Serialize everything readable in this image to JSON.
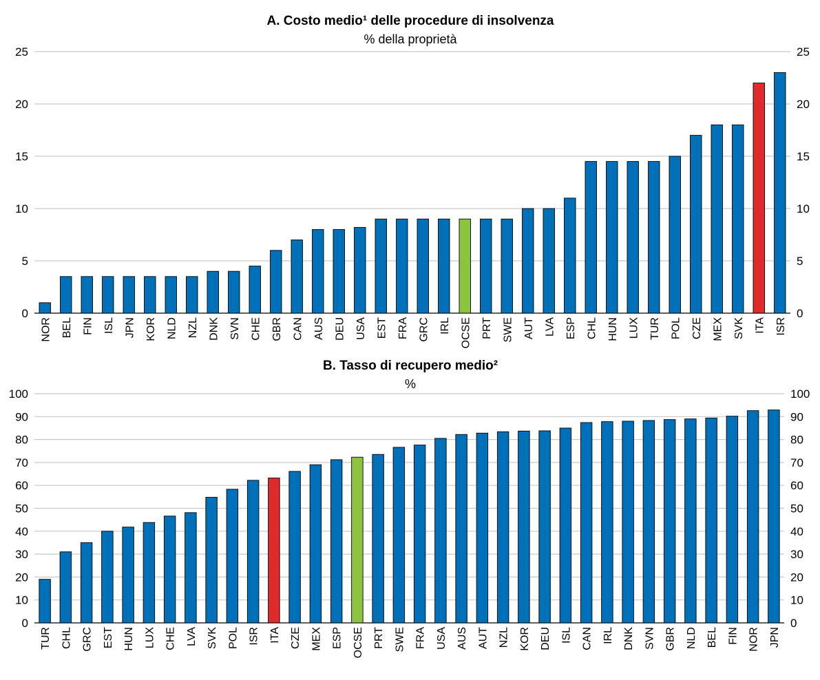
{
  "chart_data": [
    {
      "type": "bar",
      "title": "A. Costo medio¹ delle procedure di insolvenza",
      "subtitle": "% della proprietà",
      "xlabel": "",
      "ylabel": "",
      "ylim": [
        0,
        25
      ],
      "yticks": [
        0,
        5,
        10,
        15,
        20,
        25
      ],
      "grid": true,
      "categories": [
        "NOR",
        "BEL",
        "FIN",
        "ISL",
        "JPN",
        "KOR",
        "NLD",
        "NZL",
        "DNK",
        "SVN",
        "CHE",
        "GBR",
        "CAN",
        "AUS",
        "DEU",
        "USA",
        "EST",
        "FRA",
        "GRC",
        "IRL",
        "OCSE",
        "PRT",
        "SWE",
        "AUT",
        "LVA",
        "ESP",
        "CHL",
        "HUN",
        "LUX",
        "TUR",
        "POL",
        "CZE",
        "MEX",
        "SVK",
        "ITA",
        "ISR"
      ],
      "values": [
        1,
        3.5,
        3.5,
        3.5,
        3.5,
        3.5,
        3.5,
        3.5,
        4,
        4,
        4.5,
        6,
        7,
        8,
        8,
        8.2,
        9,
        9,
        9,
        9,
        9,
        9,
        9,
        10,
        10,
        11,
        14.5,
        14.5,
        14.5,
        14.5,
        15,
        17,
        18,
        18,
        22,
        23
      ],
      "colors": {
        "default": "#0070b8",
        "ITA": "#de2b2b",
        "OCSE": "#8cc43f"
      }
    },
    {
      "type": "bar",
      "title": "B.  Tasso di recupero medio²",
      "subtitle": "%",
      "xlabel": "",
      "ylabel": "",
      "ylim": [
        0,
        100
      ],
      "yticks": [
        0,
        10,
        20,
        30,
        40,
        50,
        60,
        70,
        80,
        90,
        100
      ],
      "grid": true,
      "categories": [
        "TUR",
        "CHL",
        "GRC",
        "EST",
        "HUN",
        "LUX",
        "CHE",
        "LVA",
        "SVK",
        "POL",
        "ISR",
        "ITA",
        "CZE",
        "MEX",
        "ESP",
        "OCSE",
        "PRT",
        "SWE",
        "FRA",
        "USA",
        "AUS",
        "AUT",
        "NZL",
        "KOR",
        "DEU",
        "ISL",
        "CAN",
        "IRL",
        "DNK",
        "SVN",
        "GBR",
        "NLD",
        "BEL",
        "FIN",
        "NOR",
        "JPN"
      ],
      "values": [
        19,
        31,
        35,
        40,
        41.8,
        43.8,
        46.6,
        48.1,
        54.8,
        58.3,
        62.2,
        63.2,
        66.1,
        69,
        71.2,
        72.3,
        73.5,
        76.6,
        77.6,
        80.5,
        82.2,
        82.8,
        83.4,
        83.7,
        83.8,
        85,
        87.4,
        87.8,
        88,
        88.3,
        88.7,
        89,
        89.4,
        90.2,
        92.6,
        92.9
      ],
      "colors": {
        "default": "#0070b8",
        "ITA": "#de2b2b",
        "OCSE": "#8cc43f"
      }
    }
  ]
}
